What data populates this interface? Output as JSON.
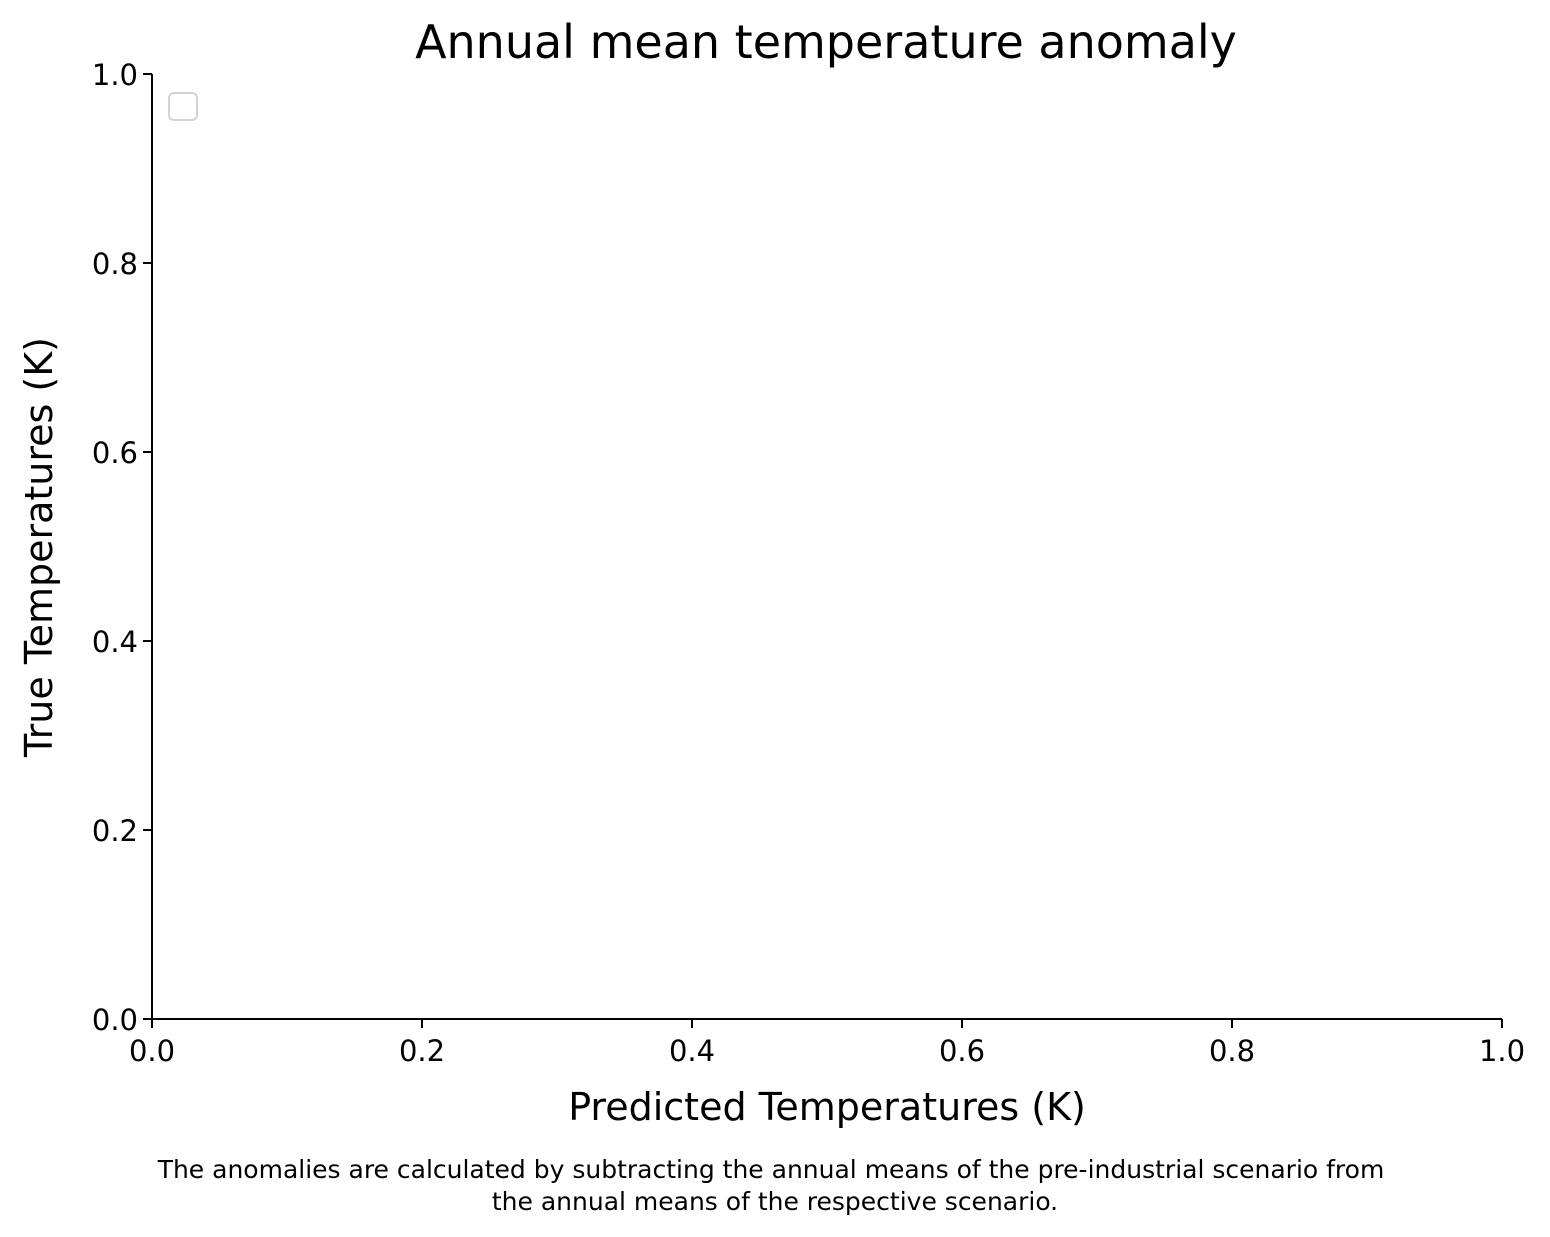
{
  "chart_data": {
    "type": "scatter",
    "title": "Annual mean temperature anomaly",
    "xlabel": "Predicted Temperatures (K)",
    "ylabel": "True Temperatures (K)",
    "xlim": [
      0.0,
      1.0
    ],
    "ylim": [
      0.0,
      1.0
    ],
    "xticks": [
      "0.0",
      "0.2",
      "0.4",
      "0.6",
      "0.8",
      "1.0"
    ],
    "yticks": [
      "0.0",
      "0.2",
      "0.4",
      "0.6",
      "0.8",
      "1.0"
    ],
    "series": [],
    "legend": {
      "placement": "top-left",
      "entries": []
    },
    "grid": false,
    "caption": [
      "The anomalies are calculated by subtracting the annual means of the pre-industrial scenario from",
      "the annual means of the respective scenario."
    ]
  }
}
